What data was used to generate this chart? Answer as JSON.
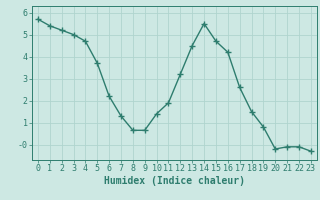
{
  "x": [
    0,
    1,
    2,
    3,
    4,
    5,
    6,
    7,
    8,
    9,
    10,
    11,
    12,
    13,
    14,
    15,
    16,
    17,
    18,
    19,
    20,
    21,
    22,
    23
  ],
  "y": [
    5.7,
    5.4,
    5.2,
    5.0,
    4.7,
    3.7,
    2.2,
    1.3,
    0.65,
    0.65,
    1.4,
    1.9,
    3.2,
    4.5,
    5.5,
    4.7,
    4.2,
    2.6,
    1.5,
    0.8,
    -0.2,
    -0.1,
    -0.1,
    -0.3
  ],
  "line_color": "#2e7d6e",
  "marker": "+",
  "marker_size": 4,
  "marker_color": "#2e7d6e",
  "bg_color": "#cde8e3",
  "grid_color": "#b0d4ce",
  "xlabel": "Humidex (Indice chaleur)",
  "xlabel_fontsize": 7,
  "xlabel_color": "#2e7d6e",
  "xlabel_bold": true,
  "ylabel_ticks": [
    0,
    1,
    2,
    3,
    4,
    5,
    6
  ],
  "ytick_labels": [
    "-0",
    "1",
    "2",
    "3",
    "4",
    "5",
    "6"
  ],
  "xtick_labels": [
    "0",
    "1",
    "2",
    "3",
    "4",
    "5",
    "6",
    "7",
    "8",
    "9",
    "10",
    "11",
    "12",
    "13",
    "14",
    "15",
    "16",
    "17",
    "18",
    "19",
    "20",
    "21",
    "22",
    "23"
  ],
  "xlim": [
    -0.5,
    23.5
  ],
  "ylim": [
    -0.7,
    6.3
  ],
  "tick_color": "#2e7d6e",
  "tick_fontsize": 6,
  "line_width": 1.0
}
